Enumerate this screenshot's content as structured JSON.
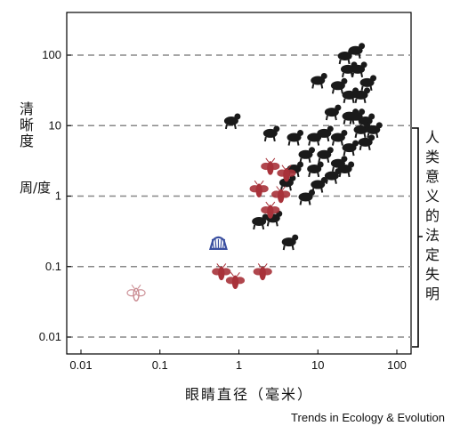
{
  "chart_data": {
    "type": "scatter",
    "title": "",
    "xlabel": "眼睛直径（毫米）",
    "ylabel_line1": "清晰度",
    "ylabel_line2": "周/度",
    "x_scale": "log",
    "y_scale": "log",
    "xlim": [
      0.01,
      100
    ],
    "ylim": [
      0.01,
      100
    ],
    "x_ticks": [
      "0.01",
      "0.1",
      "1",
      "10",
      "100"
    ],
    "y_ticks": [
      "100",
      "10",
      "1",
      "0.1",
      "0.01"
    ],
    "grid": "horizontal dashed",
    "bracket_label": "人类意义的法定失明",
    "bracket_range": [
      0.01,
      10
    ],
    "series": [
      {
        "colors": {
          "vertebrate": "#1a1a1a",
          "invertebrate": "#a8323a",
          "mollusc": "#3a4fa0",
          "small-insect": "#c98a90"
        },
        "points": [
          {
            "icon": "eagle",
            "group": "vertebrate",
            "x": 30,
            "y": 120
          },
          {
            "icon": "bird",
            "group": "vertebrate",
            "x": 22,
            "y": 100
          },
          {
            "icon": "primate",
            "group": "vertebrate",
            "x": 24,
            "y": 65
          },
          {
            "icon": "human",
            "group": "vertebrate",
            "x": 32,
            "y": 65
          },
          {
            "icon": "giraffe",
            "group": "vertebrate",
            "x": 42,
            "y": 42
          },
          {
            "icon": "cat",
            "group": "vertebrate",
            "x": 10,
            "y": 45
          },
          {
            "icon": "dog",
            "group": "vertebrate",
            "x": 18,
            "y": 38
          },
          {
            "icon": "cheetah",
            "group": "vertebrate",
            "x": 25,
            "y": 28
          },
          {
            "icon": "deer",
            "group": "vertebrate",
            "x": 35,
            "y": 28
          },
          {
            "icon": "penguin",
            "group": "vertebrate",
            "x": 15,
            "y": 16
          },
          {
            "icon": "bird-small",
            "group": "vertebrate",
            "x": 25,
            "y": 14
          },
          {
            "icon": "camel",
            "group": "vertebrate",
            "x": 30,
            "y": 14
          },
          {
            "icon": "cow",
            "group": "vertebrate",
            "x": 40,
            "y": 12
          },
          {
            "icon": "elephant",
            "group": "vertebrate",
            "x": 50,
            "y": 9
          },
          {
            "icon": "horse",
            "group": "vertebrate",
            "x": 35,
            "y": 9
          },
          {
            "icon": "spider",
            "group": "vertebrate",
            "x": 0.8,
            "y": 12
          },
          {
            "icon": "goldfish",
            "group": "vertebrate",
            "x": 2.5,
            "y": 8
          },
          {
            "icon": "fish",
            "group": "vertebrate",
            "x": 5,
            "y": 7
          },
          {
            "icon": "bird-b",
            "group": "vertebrate",
            "x": 9,
            "y": 7
          },
          {
            "icon": "bird-c",
            "group": "vertebrate",
            "x": 12,
            "y": 8
          },
          {
            "icon": "seal",
            "group": "vertebrate",
            "x": 18,
            "y": 7
          },
          {
            "icon": "shark",
            "group": "vertebrate",
            "x": 40,
            "y": 6
          },
          {
            "icon": "fish-b",
            "group": "vertebrate",
            "x": 25,
            "y": 5
          },
          {
            "icon": "turtle",
            "group": "vertebrate",
            "x": 7,
            "y": 4
          },
          {
            "icon": "rat",
            "group": "vertebrate",
            "x": 12,
            "y": 4
          },
          {
            "icon": "bird-d",
            "group": "vertebrate",
            "x": 18,
            "y": 3
          },
          {
            "icon": "gecko",
            "group": "vertebrate",
            "x": 5,
            "y": 2.5
          },
          {
            "icon": "rodent",
            "group": "vertebrate",
            "x": 9,
            "y": 2.5
          },
          {
            "icon": "owl",
            "group": "vertebrate",
            "x": 15,
            "y": 2
          },
          {
            "icon": "frog",
            "group": "vertebrate",
            "x": 22,
            "y": 2.5
          },
          {
            "icon": "lizard",
            "group": "vertebrate",
            "x": 10,
            "y": 1.5
          },
          {
            "icon": "mouse",
            "group": "vertebrate",
            "x": 7,
            "y": 1.0
          },
          {
            "icon": "chameleon",
            "group": "vertebrate",
            "x": 4,
            "y": 1.6
          },
          {
            "icon": "toad",
            "group": "vertebrate",
            "x": 1.8,
            "y": 0.45
          },
          {
            "icon": "salamander",
            "group": "vertebrate",
            "x": 2.7,
            "y": 0.5
          },
          {
            "icon": "bat",
            "group": "vertebrate",
            "x": 4.3,
            "y": 0.23
          },
          {
            "icon": "dragonfly",
            "group": "invertebrate",
            "x": 4,
            "y": 2
          },
          {
            "icon": "mantis",
            "group": "invertebrate",
            "x": 2.5,
            "y": 2.5
          },
          {
            "icon": "butterfly",
            "group": "invertebrate",
            "x": 1.8,
            "y": 1.2
          },
          {
            "icon": "moth",
            "group": "invertebrate",
            "x": 3.4,
            "y": 1.0
          },
          {
            "icon": "bee",
            "group": "invertebrate",
            "x": 2.5,
            "y": 0.6
          },
          {
            "icon": "wasp",
            "group": "invertebrate",
            "x": 0.6,
            "y": 0.08
          },
          {
            "icon": "ant",
            "group": "invertebrate",
            "x": 0.9,
            "y": 0.06
          },
          {
            "icon": "cricket",
            "group": "invertebrate",
            "x": 2.0,
            "y": 0.08
          },
          {
            "icon": "scallop",
            "group": "mollusc",
            "x": 0.55,
            "y": 0.2
          },
          {
            "icon": "fruitfly",
            "group": "small-insect",
            "x": 0.05,
            "y": 0.04
          }
        ]
      }
    ]
  },
  "credit": "Trends in Ecology & Evolution"
}
